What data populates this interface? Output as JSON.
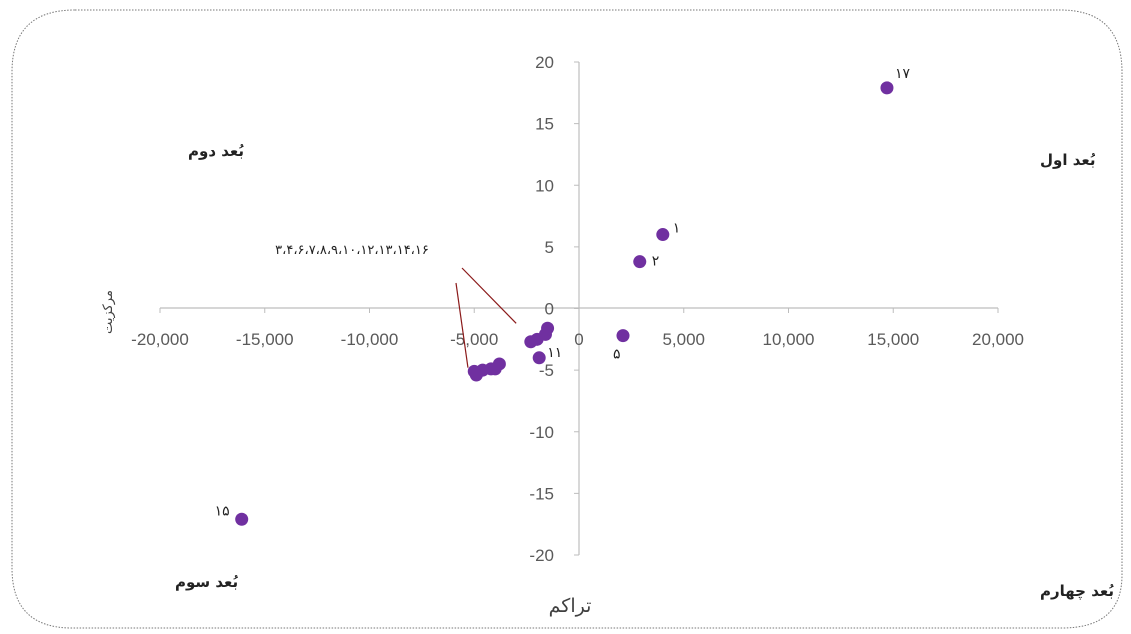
{
  "chart_data": {
    "type": "scatter",
    "xlabel": "تراکم",
    "ylabel": "مرکزیت",
    "xlim": [
      -20000,
      20000
    ],
    "ylim": [
      -20,
      20
    ],
    "x_ticks": [
      -20000,
      -15000,
      -10000,
      -5000,
      0,
      5000,
      10000,
      15000,
      20000
    ],
    "x_tick_labels": [
      "-20,000",
      "-15,000",
      "-10,000",
      "-5,000",
      "0",
      "5,000",
      "10,000",
      "15,000",
      "20,000"
    ],
    "y_ticks": [
      20,
      15,
      10,
      5,
      0,
      -5,
      -10,
      -15,
      -20
    ],
    "y_tick_labels": [
      "20",
      "15",
      "10",
      "5",
      "0",
      "-5",
      "-10",
      "-15",
      "-20"
    ],
    "grid": false,
    "marker_color": "#7030a0",
    "points": [
      {
        "x": 14700,
        "y": 17.9,
        "label": "۱۷"
      },
      {
        "x": 4000,
        "y": 6.0,
        "label": "۱"
      },
      {
        "x": 2900,
        "y": 3.8,
        "label": "۲"
      },
      {
        "x": 2100,
        "y": -2.2,
        "label": "۵"
      },
      {
        "x": -1900,
        "y": -4.0,
        "label": "۱۱"
      },
      {
        "x": -16100,
        "y": -17.1,
        "label": "۱۵"
      },
      {
        "x": -1500,
        "y": -1.6,
        "label": ""
      },
      {
        "x": -1600,
        "y": -2.1,
        "label": ""
      },
      {
        "x": -2000,
        "y": -2.5,
        "label": ""
      },
      {
        "x": -2300,
        "y": -2.7,
        "label": ""
      },
      {
        "x": -3800,
        "y": -4.5,
        "label": ""
      },
      {
        "x": -4200,
        "y": -4.9,
        "label": ""
      },
      {
        "x": -4600,
        "y": -5.0,
        "label": ""
      },
      {
        "x": -5000,
        "y": -5.1,
        "label": ""
      },
      {
        "x": -4900,
        "y": -5.4,
        "label": ""
      },
      {
        "x": -4000,
        "y": -4.9,
        "label": ""
      }
    ],
    "annotations": [
      {
        "text": "۳،۴،۶،۷،۸،۹،۱۰،۱۲،۱۳،۱۴،۱۶",
        "target_x": -3000,
        "target_y": -1.2
      },
      {
        "text": "",
        "target_x": -5300,
        "target_y": -4.8
      }
    ],
    "quadrants": {
      "first": "بُعد اول",
      "second": "بُعد دوم",
      "third": "بُعد سوم",
      "fourth": "بُعد چهارم"
    }
  }
}
